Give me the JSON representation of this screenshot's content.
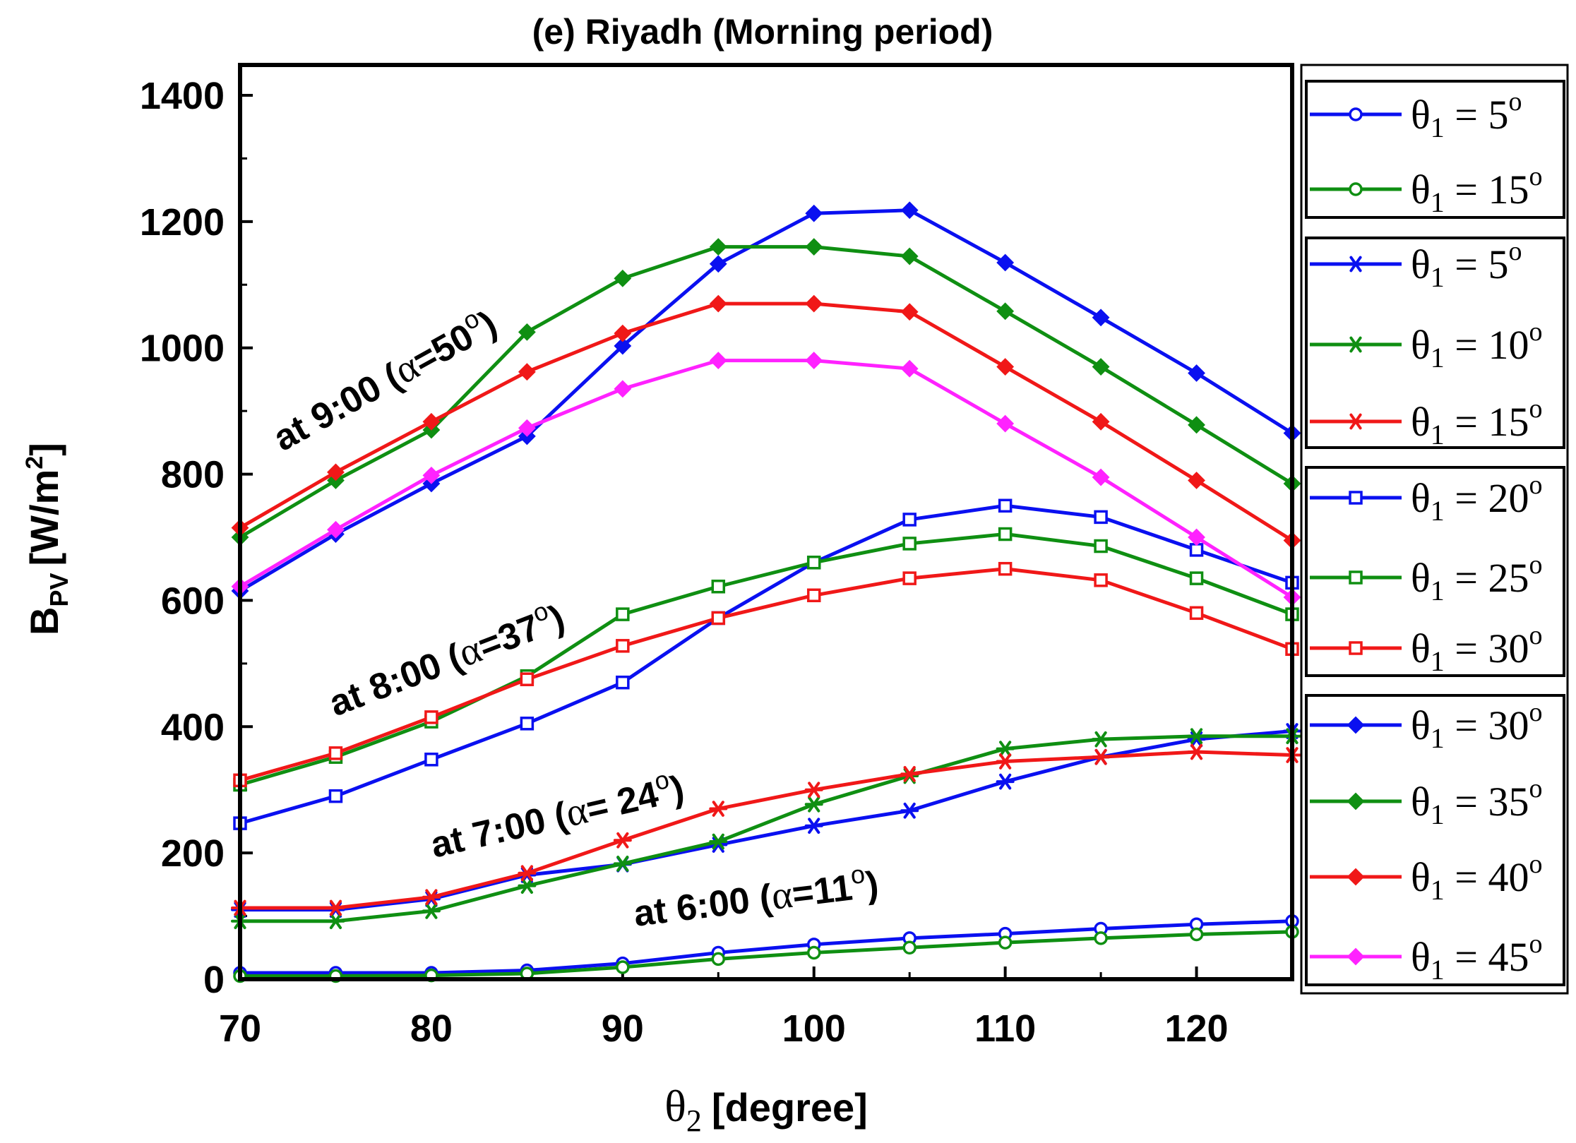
{
  "chart_data": {
    "type": "line",
    "title": "(e) Riyadh (Morning period)",
    "xlabel_symbol": "θ",
    "xlabel_sub": "2",
    "xlabel_unit": "[degree]",
    "ylabel_main": "B",
    "ylabel_sub": "PV",
    "ylabel_unit": "[W/m",
    "ylabel_sup": "2",
    "ylabel_close": "]",
    "xlim": [
      70,
      125
    ],
    "ylim": [
      0,
      1400
    ],
    "x_ticks": [
      70,
      80,
      90,
      100,
      110,
      120
    ],
    "y_ticks": [
      0,
      200,
      400,
      600,
      800,
      1000,
      1200,
      1400
    ],
    "x": [
      70,
      75,
      80,
      85,
      90,
      95,
      100,
      105,
      110,
      115,
      120,
      125
    ],
    "annotations": [
      {
        "prefix": "at 9:00 (",
        "alpha": "α",
        "eq": "=50",
        "sup": "o",
        "close": ")"
      },
      {
        "prefix": "at 8:00 (",
        "alpha": "α",
        "eq": "=37",
        "sup": "o",
        "close": ")"
      },
      {
        "prefix": "at 7:00 (",
        "alpha": "α",
        "eq": "= 24",
        "sup": "o",
        "close": ")"
      },
      {
        "prefix": "at 6:00 (",
        "alpha": "α",
        "eq": "=11",
        "sup": "o",
        "close": ")"
      }
    ],
    "colors": {
      "blue": "#0a10f0",
      "green": "#0f8f12",
      "red": "#f01818",
      "magenta": "#ff22ff"
    },
    "groups": [
      {
        "series": [
          {
            "name": "θ1 = 5o",
            "sym": "θ",
            "sub": "1",
            "eq": " = 5",
            "sup": "o",
            "color": "#0a10f0",
            "marker": "circle",
            "values": [
              10,
              10,
              10,
              14,
              25,
              42,
              55,
              65,
              72,
              80,
              87,
              92
            ]
          },
          {
            "name": "θ1 = 15o",
            "sym": "θ",
            "sub": "1",
            "eq": " = 15",
            "sup": "o",
            "color": "#0f8f12",
            "marker": "circle",
            "values": [
              5,
              5,
              6,
              9,
              19,
              32,
              42,
              50,
              58,
              65,
              71,
              75
            ]
          }
        ]
      },
      {
        "series": [
          {
            "name": "θ1 = 5o",
            "sym": "θ",
            "sub": "1",
            "eq": " = 5",
            "sup": "o",
            "color": "#0a10f0",
            "marker": "star",
            "values": [
              110,
              110,
              127,
              165,
              182,
              213,
              243,
              267,
              313,
              352,
              380,
              393
            ]
          },
          {
            "name": "θ1 = 10o",
            "sym": "θ",
            "sub": "1",
            "eq": " = 10",
            "sup": "o",
            "color": "#0f8f12",
            "marker": "star",
            "values": [
              92,
              92,
              108,
              148,
              183,
              218,
              277,
              322,
              365,
              380,
              385,
              385
            ]
          },
          {
            "name": "θ1 = 15o",
            "sym": "θ",
            "sub": "1",
            "eq": " = 15",
            "sup": "o",
            "color": "#f01818",
            "marker": "star",
            "values": [
              113,
              113,
              130,
              168,
              220,
              270,
              300,
              325,
              345,
              352,
              360,
              355
            ]
          }
        ]
      },
      {
        "series": [
          {
            "name": "θ1 = 20o",
            "sym": "θ",
            "sub": "1",
            "eq": " = 20",
            "sup": "o",
            "color": "#0a10f0",
            "marker": "square",
            "values": [
              247,
              290,
              348,
              405,
              470,
              572,
              660,
              728,
              750,
              732,
              680,
              628
            ]
          },
          {
            "name": "θ1 = 25o",
            "sym": "θ",
            "sub": "1",
            "eq": " = 25",
            "sup": "o",
            "color": "#0f8f12",
            "marker": "square",
            "values": [
              308,
              352,
              408,
              480,
              578,
              622,
              660,
              690,
              705,
              686,
              635,
              578
            ]
          },
          {
            "name": "θ1 = 30o",
            "sym": "θ",
            "sub": "1",
            "eq": " = 30",
            "sup": "o",
            "color": "#f01818",
            "marker": "square",
            "values": [
              315,
              358,
              415,
              475,
              528,
              572,
              608,
              635,
              650,
              632,
              580,
              523
            ]
          }
        ]
      },
      {
        "series": [
          {
            "name": "θ1 = 30o",
            "sym": "θ",
            "sub": "1",
            "eq": " = 30",
            "sup": "o",
            "color": "#0a10f0",
            "marker": "diamond",
            "values": [
              615,
              705,
              785,
              860,
              1003,
              1133,
              1213,
              1218,
              1135,
              1048,
              960,
              865
            ]
          },
          {
            "name": "θ1 = 35o",
            "sym": "θ",
            "sub": "1",
            "eq": " = 35",
            "sup": "o",
            "color": "#0f8f12",
            "marker": "diamond",
            "values": [
              700,
              790,
              870,
              1025,
              1110,
              1160,
              1160,
              1145,
              1058,
              970,
              878,
              785
            ]
          },
          {
            "name": "θ1 = 40o",
            "sym": "θ",
            "sub": "1",
            "eq": " = 40",
            "sup": "o",
            "color": "#f01818",
            "marker": "diamond",
            "values": [
              715,
              803,
              883,
              962,
              1023,
              1070,
              1070,
              1057,
              970,
              883,
              790,
              695
            ]
          },
          {
            "name": "θ1 = 45o",
            "sym": "θ",
            "sub": "1",
            "eq": " = 45",
            "sup": "o",
            "color": "#ff22ff",
            "marker": "diamond",
            "values": [
              622,
              712,
              798,
              873,
              935,
              980,
              980,
              967,
              880,
              795,
              700,
              605
            ]
          }
        ]
      }
    ]
  }
}
